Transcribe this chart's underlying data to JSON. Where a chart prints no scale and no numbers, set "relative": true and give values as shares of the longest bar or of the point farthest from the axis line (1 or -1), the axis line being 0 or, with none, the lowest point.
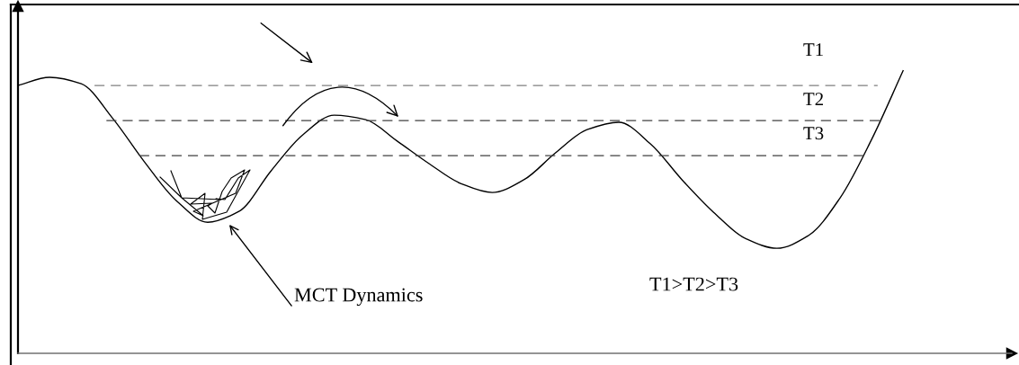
{
  "chart_data": {
    "type": "line",
    "relative": true,
    "color": "#000000",
    "marker": "none",
    "line_style": "solid",
    "legend": false,
    "categories": [
      null,
      null,
      null,
      null,
      null,
      null,
      null,
      null,
      null,
      null,
      null,
      null,
      null,
      null,
      null,
      null,
      null,
      null,
      null,
      null,
      null,
      null,
      null,
      null,
      null,
      null,
      null,
      null,
      null
    ],
    "values": [
      0.946,
      0.975,
      0.952,
      0.829,
      0.676,
      0.54,
      0.463,
      0.502,
      0.644,
      0.771,
      0.841,
      0.825,
      0.749,
      0.67,
      0.6,
      0.568,
      0.613,
      0.708,
      0.79,
      0.816,
      0.74,
      0.613,
      0.498,
      0.406,
      0.371,
      0.416,
      0.549,
      0.756,
      1.0
    ],
    "ref_lines": [
      {
        "axis": "y",
        "value": 0.946,
        "label": "T1",
        "color": "#808080",
        "line_style": "dashed"
      },
      {
        "axis": "y",
        "value": 0.822,
        "label": "T2",
        "color": "#404040",
        "line_style": "dashed"
      },
      {
        "axis": "y",
        "value": 0.698,
        "label": "T3",
        "color": "#404040",
        "line_style": "dashed"
      }
    ],
    "annotations": [
      "MCT Dynamics",
      "T1>T2>T3"
    ]
  }
}
